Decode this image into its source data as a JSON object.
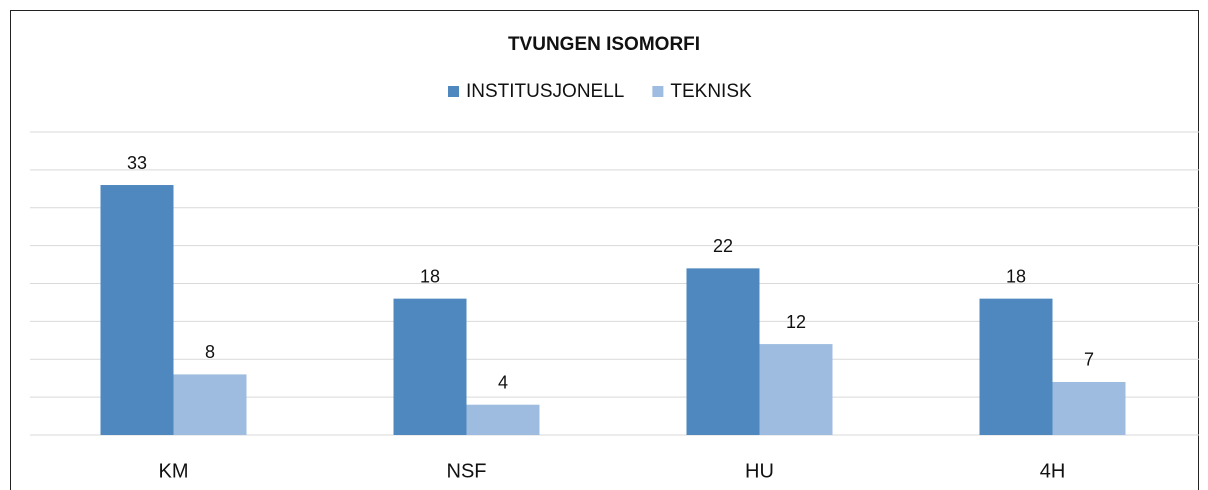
{
  "chart_data": {
    "type": "bar",
    "title": "TVUNGEN ISOMORFI",
    "categories": [
      "KM",
      "NSF",
      "HU",
      "4H"
    ],
    "series": [
      {
        "name": "INSTITUSJONELL",
        "color": "#4f88be",
        "values": [
          33,
          18,
          22,
          18
        ]
      },
      {
        "name": "TEKNISK",
        "color": "#9dbce0",
        "values": [
          8,
          4,
          12,
          7
        ]
      }
    ],
    "ylim": [
      0,
      40
    ],
    "yticks": [
      0,
      5,
      10,
      15,
      20,
      25,
      30,
      35,
      40
    ],
    "grid": true,
    "legend": "top"
  }
}
